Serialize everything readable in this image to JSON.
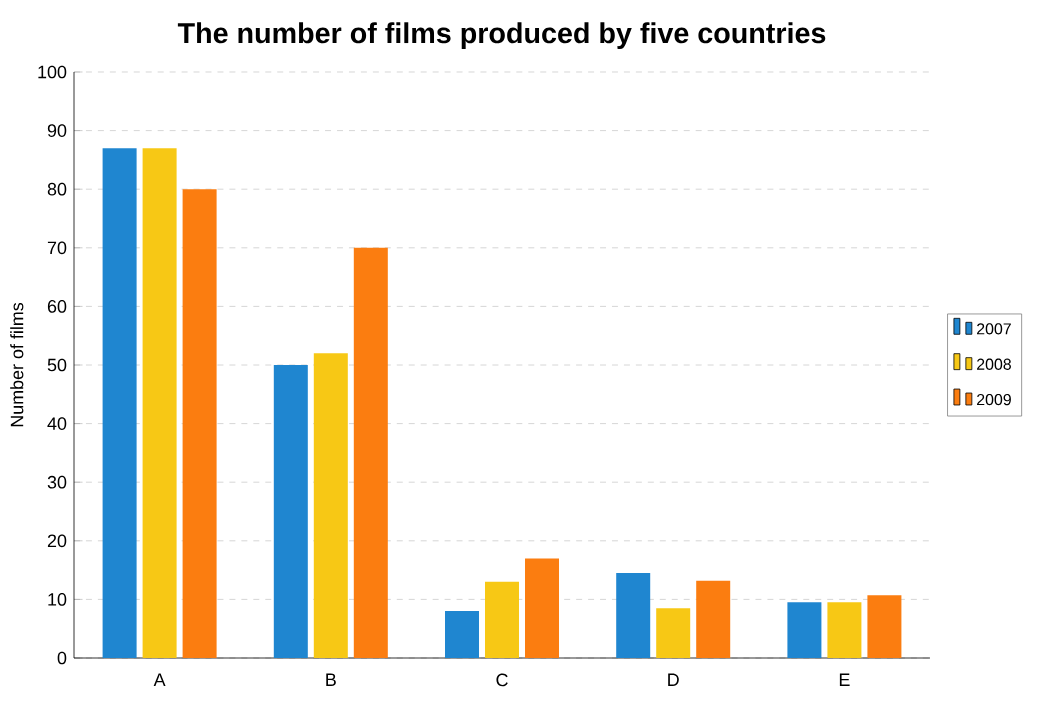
{
  "chart_data": {
    "type": "bar",
    "title": "The number of films produced by five countries",
    "ylabel": "Number of films",
    "categories": [
      "A",
      "B",
      "C",
      "D",
      "E"
    ],
    "series": [
      {
        "name": "2007",
        "color": "#1f86d0",
        "values": [
          87,
          50,
          8,
          14.5,
          9.5
        ]
      },
      {
        "name": "2008",
        "color": "#f7c815",
        "values": [
          87,
          52,
          13,
          8.5,
          9.5
        ]
      },
      {
        "name": "2009",
        "color": "#fb7d10",
        "values": [
          80,
          70,
          17,
          13.2,
          10.7
        ]
      }
    ],
    "ylim": [
      0,
      100
    ],
    "yticks": [
      0,
      10,
      20,
      30,
      40,
      50,
      60,
      70,
      80,
      90,
      100
    ],
    "grid": "y",
    "legend": "right"
  }
}
